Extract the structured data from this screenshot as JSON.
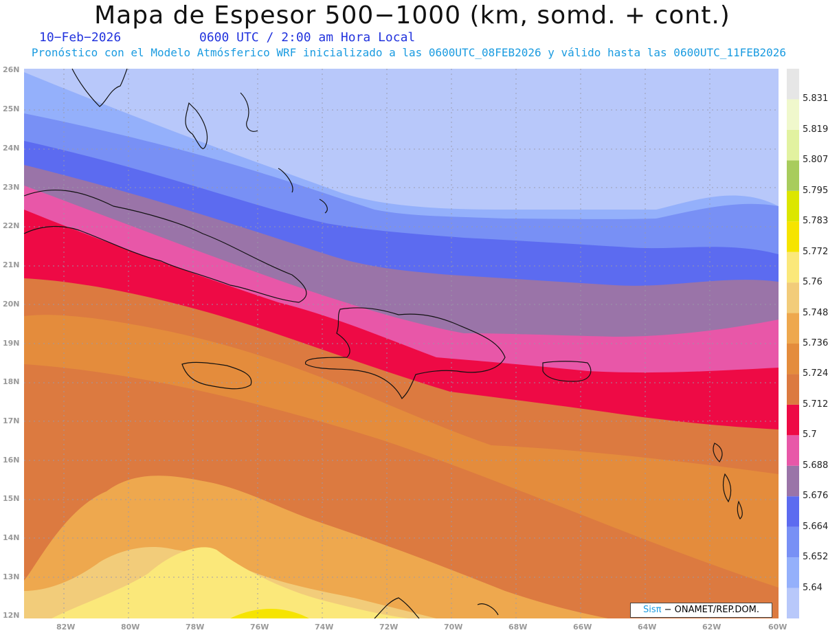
{
  "header": {
    "title": "Mapa de Espesor 500−1000 (km, somd. + cont.)",
    "date": "10−Feb−2026",
    "time": "0600 UTC / 2:00 am Hora Local",
    "model_note": "Pronóstico con el Modelo Atmósferico WRF inicializado a las 0600UTC_08FEB2026 y válido hasta las  0600UTC_11FEB2026"
  },
  "axes": {
    "lat_labels": [
      "26N",
      "25N",
      "24N",
      "23N",
      "22N",
      "21N",
      "20N",
      "19N",
      "18N",
      "17N",
      "16N",
      "15N",
      "14N",
      "13N",
      "12N"
    ],
    "lon_labels": [
      "82W",
      "80W",
      "78W",
      "76W",
      "74W",
      "72W",
      "70W",
      "68W",
      "66W",
      "64W",
      "62W",
      "60W"
    ]
  },
  "colorbar": {
    "levels": [
      "5.64",
      "5.652",
      "5.664",
      "5.676",
      "5.688",
      "5.7",
      "5.712",
      "5.724",
      "5.736",
      "5.748",
      "5.76",
      "5.772",
      "5.783",
      "5.795",
      "5.807",
      "5.819",
      "5.831"
    ],
    "colors": [
      "#b8c8fa",
      "#94b0fb",
      "#7890f5",
      "#5c6bf0",
      "#9a74a8",
      "#e857a8",
      "#ee0a45",
      "#dc7a40",
      "#e48c3c",
      "#eea84e",
      "#f2cc7a",
      "#fbe87a",
      "#f6e400",
      "#dce600",
      "#a8cc5c",
      "#e2f2a0",
      "#f0f8cc",
      "#e6e6e6"
    ]
  },
  "credit": {
    "brand": "Sisπ",
    "org": "− ONAMET/REP.DOM."
  }
}
